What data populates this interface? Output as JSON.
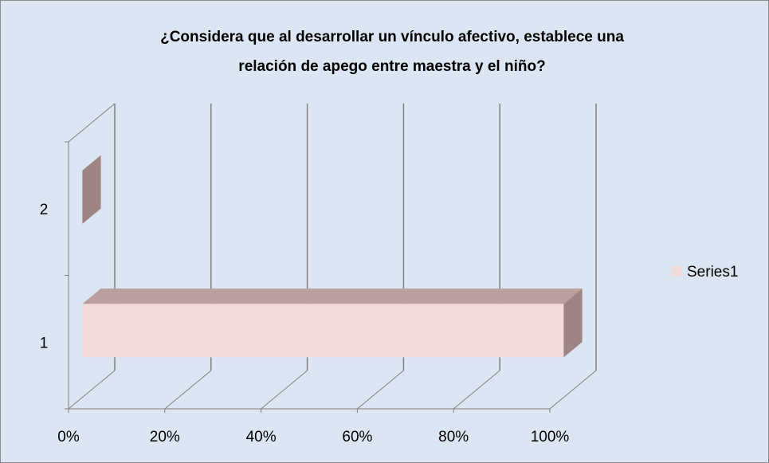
{
  "chart_data": {
    "type": "bar3d_horizontal",
    "title": [
      "¿Considera que al desarrollar un vínculo afectivo, establece una",
      "relación de apego entre maestra  y el  niño?"
    ],
    "categories": [
      "1",
      "2"
    ],
    "series": [
      {
        "name": "Series1",
        "color": "#f2dcdb",
        "values": [
          100,
          0
        ]
      }
    ],
    "xlim": [
      0,
      100
    ],
    "xticks": [
      {
        "value": 0,
        "label": "0%"
      },
      {
        "value": 20,
        "label": "20%"
      },
      {
        "value": 40,
        "label": "40%"
      },
      {
        "value": 60,
        "label": "60%"
      },
      {
        "value": 80,
        "label": "80%"
      },
      {
        "value": 100,
        "label": "100%"
      }
    ],
    "grid": true,
    "legend": "right"
  }
}
